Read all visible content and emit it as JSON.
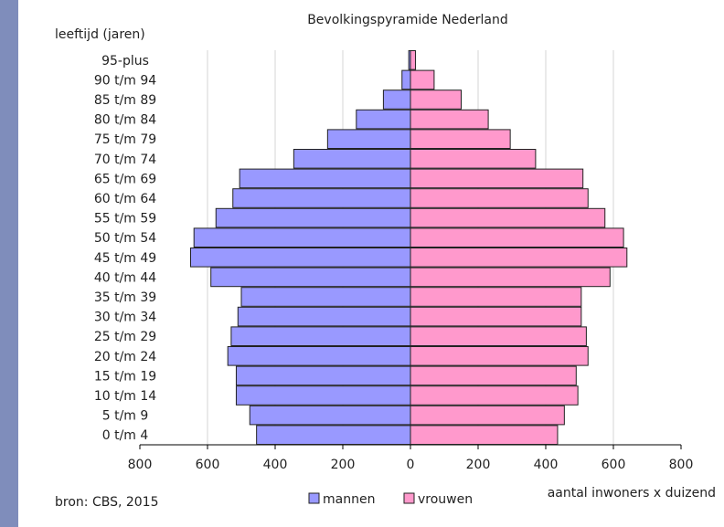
{
  "chart_data": {
    "type": "bar",
    "orientation": "horizontal-population-pyramid",
    "title": "Bevolkingspyramide  Nederland",
    "ylabel": "leeftijd  (jaren)",
    "xlabel": "aantal inwoners  x duizend",
    "source": "bron: CBS,  2015",
    "xlim": [
      -800,
      800
    ],
    "x_ticks": [
      {
        "value": -800,
        "label": "800"
      },
      {
        "value": -600,
        "label": "600"
      },
      {
        "value": -400,
        "label": "400"
      },
      {
        "value": -200,
        "label": "200"
      },
      {
        "value": 0,
        "label": "0"
      },
      {
        "value": 200,
        "label": "200"
      },
      {
        "value": 400,
        "label": "400"
      },
      {
        "value": 600,
        "label": "600"
      },
      {
        "value": 800,
        "label": "800"
      }
    ],
    "grid": true,
    "legend_position": "bottom",
    "categories": [
      "0 t/m 4",
      "5 t/m 9",
      "10 t/m 14",
      "15 t/m 19",
      "20 t/m 24",
      "25 t/m 29",
      "30 t/m 34",
      "35 t/m 39",
      "40 t/m 44",
      "45 t/m 49",
      "50 t/m 54",
      "55 t/m 59",
      "60 t/m 64",
      "65 t/m 69",
      "70 t/m 74",
      "75 t/m 79",
      "80 t/m 84",
      "85 t/m 89",
      "90 t/m 94",
      "95-plus"
    ],
    "series": [
      {
        "name": "mannen",
        "color": "#9999ff",
        "values": [
          455,
          475,
          515,
          515,
          540,
          530,
          510,
          500,
          590,
          650,
          640,
          575,
          525,
          505,
          345,
          245,
          160,
          80,
          25,
          5
        ]
      },
      {
        "name": "vrouwen",
        "color": "#ff99cc",
        "values": [
          435,
          455,
          495,
          490,
          525,
          520,
          505,
          505,
          590,
          640,
          630,
          575,
          525,
          510,
          370,
          295,
          230,
          150,
          70,
          15
        ]
      }
    ]
  }
}
